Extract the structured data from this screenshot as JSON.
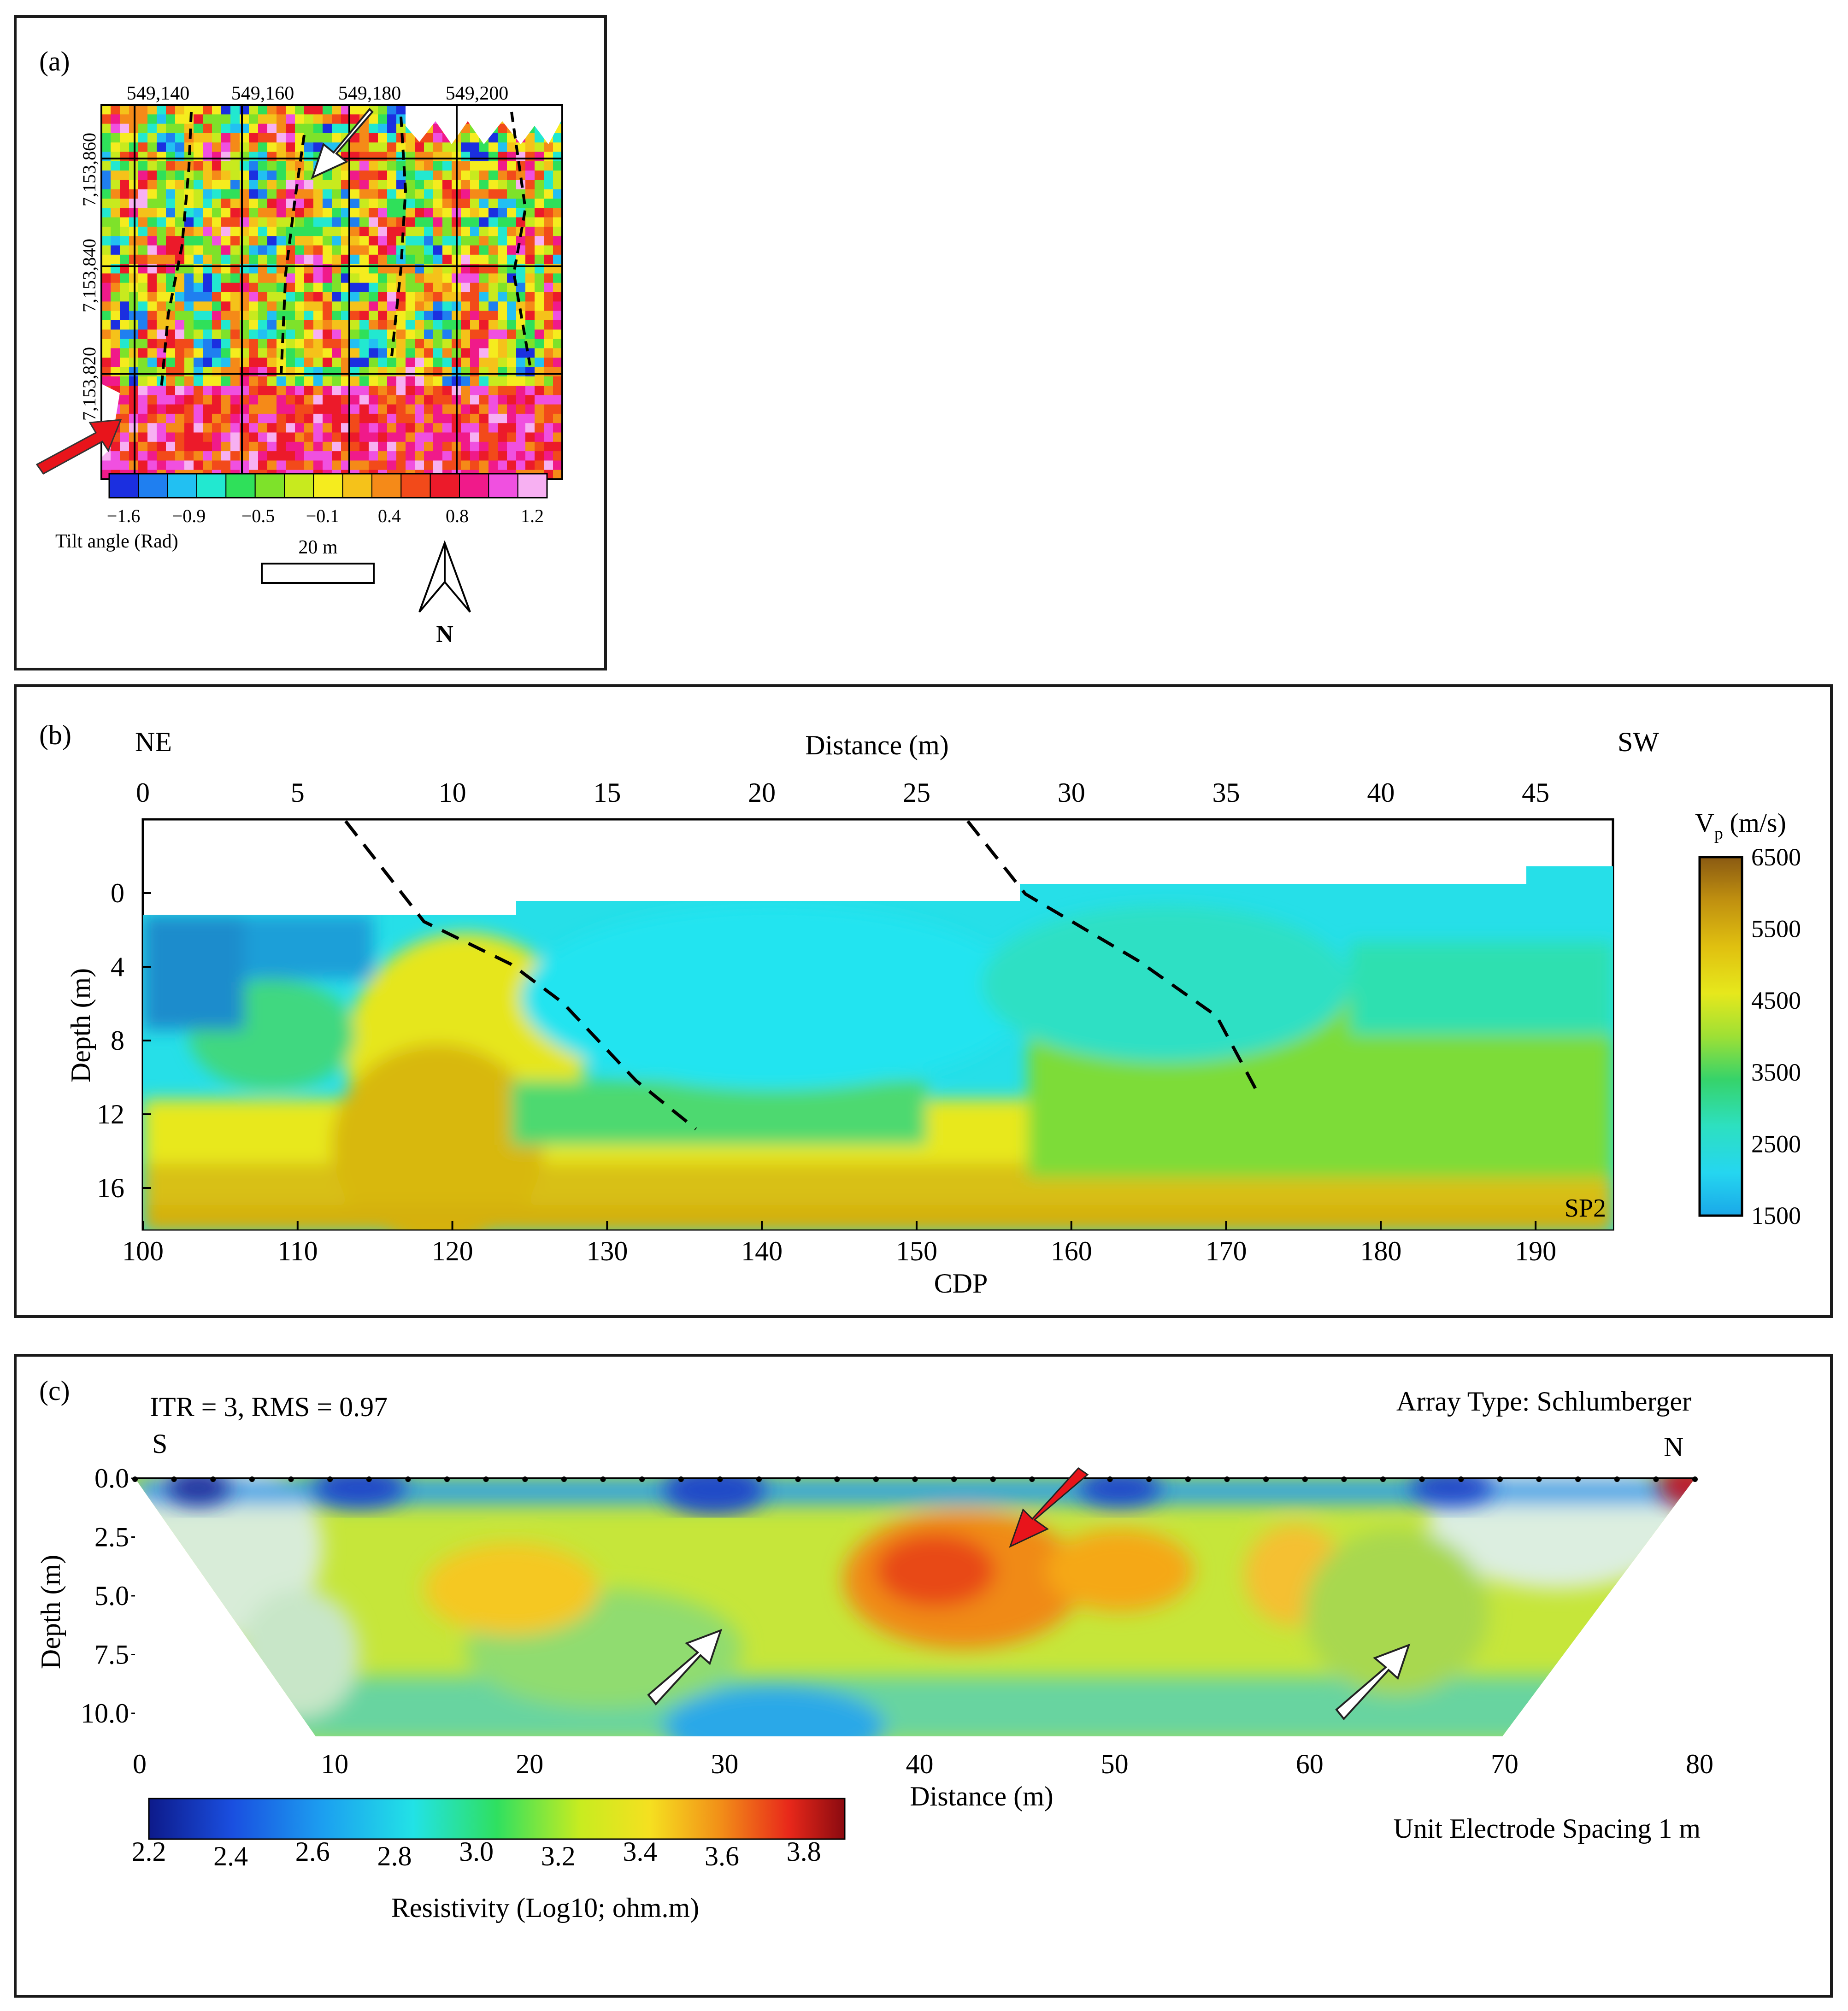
{
  "panel_a": {
    "label": "(a)",
    "x_ticks": [
      "549,140",
      "549,160",
      "549,180",
      "549,200"
    ],
    "y_ticks": [
      "7,153,860",
      "7,153,840",
      "7,153,820"
    ],
    "colorbar_ticks": [
      "−1.6",
      "−0.9",
      "−0.5",
      "−0.1",
      "0.4",
      "0.8",
      "1.2"
    ],
    "colorbar_title": "Tilt angle (Rad)",
    "scale_label": "20 m",
    "north_label": "N"
  },
  "panel_b": {
    "label": "(b)",
    "left_end": "NE",
    "right_end": "SW",
    "top_axis_title": "Distance (m)",
    "top_ticks": [
      "0",
      "5",
      "10",
      "15",
      "20",
      "25",
      "30",
      "35",
      "40",
      "45"
    ],
    "y_title": "Depth (m)",
    "y_ticks": [
      "0",
      "4",
      "8",
      "12",
      "16"
    ],
    "bottom_ticks": [
      "100",
      "110",
      "120",
      "130",
      "140",
      "150",
      "160",
      "170",
      "180",
      "190"
    ],
    "bottom_axis_title": "CDP",
    "colorbar_title_main": "V",
    "colorbar_title_sub": "p",
    "colorbar_title_unit": " (m/s)",
    "colorbar_ticks": [
      "6500",
      "5500",
      "4500",
      "3500",
      "2500",
      "1500"
    ],
    "profile_tag": "SP2"
  },
  "panel_c": {
    "label": "(c)",
    "stats": "ITR = 3, RMS = 0.97",
    "array_type": "Array Type: Schlumberger",
    "left_end": "S",
    "right_end": "N",
    "y_title": "Depth (m)",
    "y_ticks": [
      "0.0",
      "2.5",
      "5.0",
      "7.5",
      "10.0"
    ],
    "x_ticks": [
      "0",
      "10",
      "20",
      "30",
      "40",
      "50",
      "60",
      "70",
      "80"
    ],
    "x_title": "Distance (m)",
    "spacing_note": "Unit Electrode Spacing 1 m",
    "colorbar_ticks": [
      "2.2",
      "2.4",
      "2.6",
      "2.8",
      "3.0",
      "3.2",
      "3.4",
      "3.6",
      "3.8"
    ],
    "colorbar_title": "Resistivity (Log10; ohm.m)"
  },
  "colors": {
    "arrow_red": "#e8141b",
    "arrow_white": "#ffffff",
    "frame": "#1a1a1a"
  },
  "chart_data": [
    {
      "type": "heatmap",
      "title": "",
      "xlabel": "",
      "ylabel": "",
      "x_ticks": [
        549140,
        549160,
        549180,
        549200
      ],
      "y_ticks": [
        7153860,
        7153840,
        7153820
      ],
      "colorbar": {
        "label": "Tilt angle (Rad)",
        "range": [
          -1.6,
          1.2
        ],
        "ticks": [
          -1.6,
          -0.9,
          -0.5,
          -0.1,
          0.4,
          0.8,
          1.2
        ]
      },
      "annotations": [
        "four dashed north-trending lineaments",
        "white arrow near 549,180 / 7,153,860",
        "red arrow at southwest corner"
      ],
      "scale_bar": "20 m",
      "north_arrow": "N"
    },
    {
      "type": "heatmap",
      "title": "",
      "xlabel": "Distance (m)",
      "x2label": "CDP",
      "ylabel": "Depth (m)",
      "x_range": [
        0,
        47.5
      ],
      "cdp_range": [
        100,
        195
      ],
      "y_range": [
        -3,
        18
      ],
      "x_ticks": [
        0,
        5,
        10,
        15,
        20,
        25,
        30,
        35,
        40,
        45
      ],
      "cdp_ticks": [
        100,
        110,
        120,
        130,
        140,
        150,
        160,
        170,
        180,
        190
      ],
      "y_ticks": [
        0,
        4,
        8,
        12,
        16
      ],
      "colorbar": {
        "label": "Vp (m/s)",
        "range": [
          1500,
          6500
        ],
        "ticks": [
          1500,
          2500,
          3500,
          4500,
          5500,
          6500
        ]
      },
      "profile": "SP2",
      "ends": [
        "NE",
        "SW"
      ],
      "dashed_lines": [
        {
          "points": [
            [
              6.2,
              -3.5
            ],
            [
              8.8,
              1.6
            ],
            [
              12.5,
              5.2
            ],
            [
              17.0,
              12.6
            ]
          ]
        },
        {
          "points": [
            [
              25.6,
              -3.5
            ],
            [
              27.3,
              0.3
            ],
            [
              31.5,
              4.0
            ],
            [
              34.8,
              11.5
            ]
          ]
        }
      ]
    },
    {
      "type": "heatmap",
      "title": "",
      "xlabel": "Distance (m)",
      "ylabel": "Depth (m)",
      "x_range": [
        0,
        80
      ],
      "y_range": [
        0,
        11
      ],
      "x_ticks": [
        0,
        10,
        20,
        30,
        40,
        50,
        60,
        70,
        80
      ],
      "y_ticks": [
        0.0,
        2.5,
        5.0,
        7.5,
        10.0
      ],
      "colorbar": {
        "label": "Resistivity (Log10; ohm.m)",
        "range": [
          2.2,
          3.9
        ],
        "ticks": [
          2.2,
          2.4,
          2.6,
          2.8,
          3.0,
          3.2,
          3.4,
          3.6,
          3.8
        ]
      },
      "inversion": {
        "iterations": 3,
        "rms": 0.97
      },
      "array_type": "Schlumberger",
      "electrode_spacing_m": 1,
      "ends": [
        "S",
        "N"
      ],
      "high_resistivity_zones_x": [
        21,
        42,
        59
      ],
      "arrows": [
        {
          "color": "red",
          "target_x": 45,
          "target_depth": 2.3
        },
        {
          "color": "white",
          "target_x": 30,
          "target_depth": 6
        },
        {
          "color": "white",
          "target_x": 65,
          "target_depth": 7
        }
      ]
    }
  ]
}
